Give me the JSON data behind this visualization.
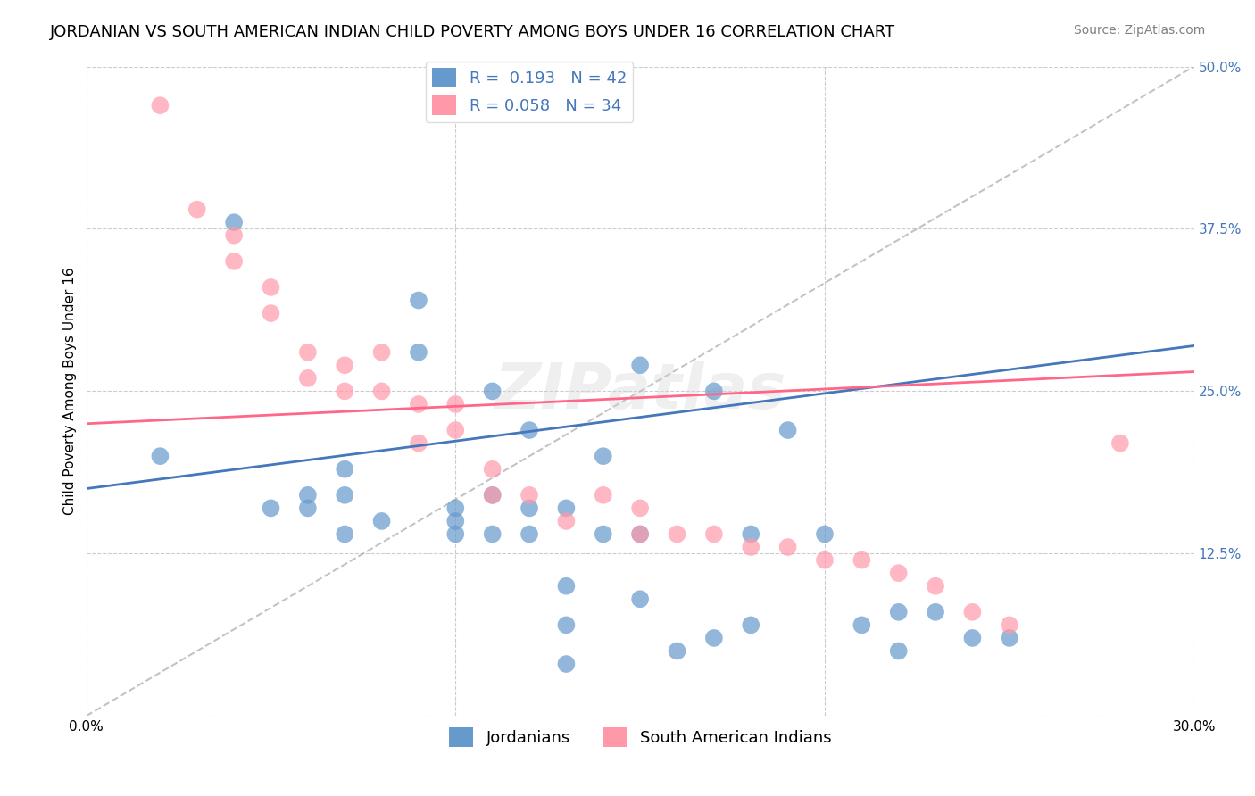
{
  "title": "JORDANIAN VS SOUTH AMERICAN INDIAN CHILD POVERTY AMONG BOYS UNDER 16 CORRELATION CHART",
  "source": "Source: ZipAtlas.com",
  "xlabel": "",
  "ylabel": "Child Poverty Among Boys Under 16",
  "xlim": [
    0.0,
    0.3
  ],
  "ylim": [
    0.0,
    0.5
  ],
  "blue_R": 0.193,
  "blue_N": 42,
  "pink_R": 0.058,
  "pink_N": 34,
  "blue_color": "#6699CC",
  "pink_color": "#FF99AA",
  "blue_line_color": "#4477BB",
  "pink_line_color": "#FF6688",
  "watermark": "ZIPatlas",
  "blue_scatter_x": [
    0.02,
    0.04,
    0.05,
    0.06,
    0.06,
    0.07,
    0.07,
    0.07,
    0.08,
    0.09,
    0.09,
    0.1,
    0.1,
    0.1,
    0.11,
    0.11,
    0.11,
    0.12,
    0.12,
    0.12,
    0.13,
    0.13,
    0.13,
    0.13,
    0.14,
    0.14,
    0.15,
    0.15,
    0.15,
    0.16,
    0.17,
    0.17,
    0.18,
    0.18,
    0.19,
    0.2,
    0.21,
    0.22,
    0.22,
    0.23,
    0.24,
    0.25
  ],
  "blue_scatter_y": [
    0.2,
    0.38,
    0.16,
    0.16,
    0.17,
    0.14,
    0.17,
    0.19,
    0.15,
    0.28,
    0.32,
    0.14,
    0.15,
    0.16,
    0.14,
    0.17,
    0.25,
    0.14,
    0.16,
    0.22,
    0.04,
    0.07,
    0.1,
    0.16,
    0.14,
    0.2,
    0.09,
    0.14,
    0.27,
    0.05,
    0.06,
    0.25,
    0.07,
    0.14,
    0.22,
    0.14,
    0.07,
    0.05,
    0.08,
    0.08,
    0.06,
    0.06
  ],
  "pink_scatter_x": [
    0.02,
    0.03,
    0.04,
    0.04,
    0.05,
    0.05,
    0.06,
    0.06,
    0.07,
    0.07,
    0.08,
    0.08,
    0.09,
    0.09,
    0.1,
    0.1,
    0.11,
    0.11,
    0.12,
    0.13,
    0.14,
    0.15,
    0.15,
    0.16,
    0.17,
    0.18,
    0.19,
    0.2,
    0.21,
    0.22,
    0.23,
    0.24,
    0.25,
    0.28
  ],
  "pink_scatter_y": [
    0.47,
    0.39,
    0.35,
    0.37,
    0.31,
    0.33,
    0.26,
    0.28,
    0.25,
    0.27,
    0.25,
    0.28,
    0.21,
    0.24,
    0.22,
    0.24,
    0.17,
    0.19,
    0.17,
    0.15,
    0.17,
    0.14,
    0.16,
    0.14,
    0.14,
    0.13,
    0.13,
    0.12,
    0.12,
    0.11,
    0.1,
    0.08,
    0.07,
    0.21
  ],
  "blue_line_y_start": 0.175,
  "blue_line_y_end": 0.285,
  "pink_line_y_start": 0.225,
  "pink_line_y_end": 0.265,
  "background_color": "#FFFFFF",
  "grid_color": "#CCCCCC",
  "title_fontsize": 13,
  "axis_label_fontsize": 11,
  "tick_fontsize": 11,
  "legend_fontsize": 13
}
